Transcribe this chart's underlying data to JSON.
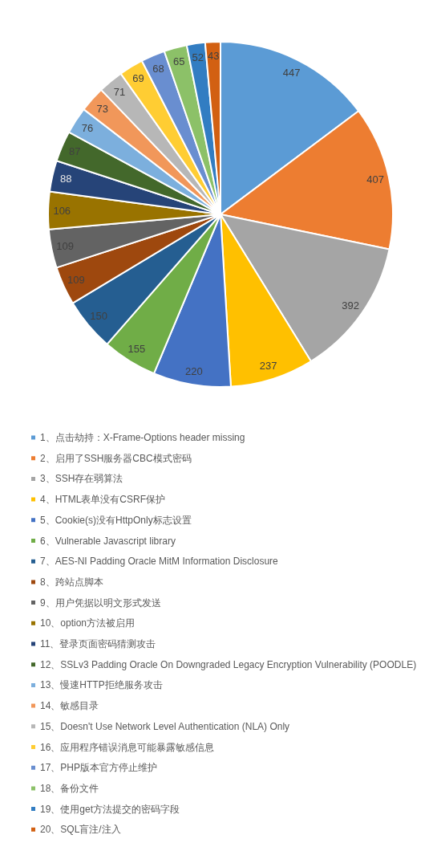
{
  "chart_data": {
    "type": "pie",
    "categories": [
      "1、点击劫持：X-Frame-Options header missing",
      "2、启用了SSH服务器CBC模式密码",
      "3、SSH存在弱算法",
      "4、HTML表单没有CSRF保护",
      "5、Cookie(s)没有HttpOnly标志设置",
      "6、Vulnerable Javascript library",
      "7、AES-NI Padding Oracle MitM Information Disclosure",
      "8、跨站点脚本",
      "9、用户凭据以明文形式发送",
      "10、option方法被启用",
      "11、登录页面密码猜测攻击",
      "12、SSLv3 Padding Oracle On Downgraded Legacy Encryption Vulnerability (POODLE)",
      "13、慢速HTTP拒绝服务攻击",
      "14、敏感目录",
      "15、Doesn't Use Network Level Authentication (NLA) Only",
      "16、应用程序错误消息可能暴露敏感信息",
      "17、PHP版本官方停止维护",
      "18、备份文件",
      "19、使用get方法提交的密码字段",
      "20、SQL盲注/注入"
    ],
    "values": [
      447,
      407,
      392,
      237,
      220,
      155,
      150,
      109,
      109,
      106,
      88,
      87,
      76,
      73,
      71,
      69,
      68,
      65,
      52,
      43
    ],
    "colors": [
      "#5b9bd5",
      "#ed7d31",
      "#a5a5a5",
      "#ffc000",
      "#4472c4",
      "#70ad47",
      "#255e91",
      "#9e480e",
      "#636363",
      "#997300",
      "#264478",
      "#43682b",
      "#7cafdd",
      "#f1975a",
      "#b7b7b7",
      "#ffcd33",
      "#698ed0",
      "#8cc168",
      "#327dc2",
      "#d26012"
    ],
    "data_labels": true,
    "legend": "bottom"
  }
}
